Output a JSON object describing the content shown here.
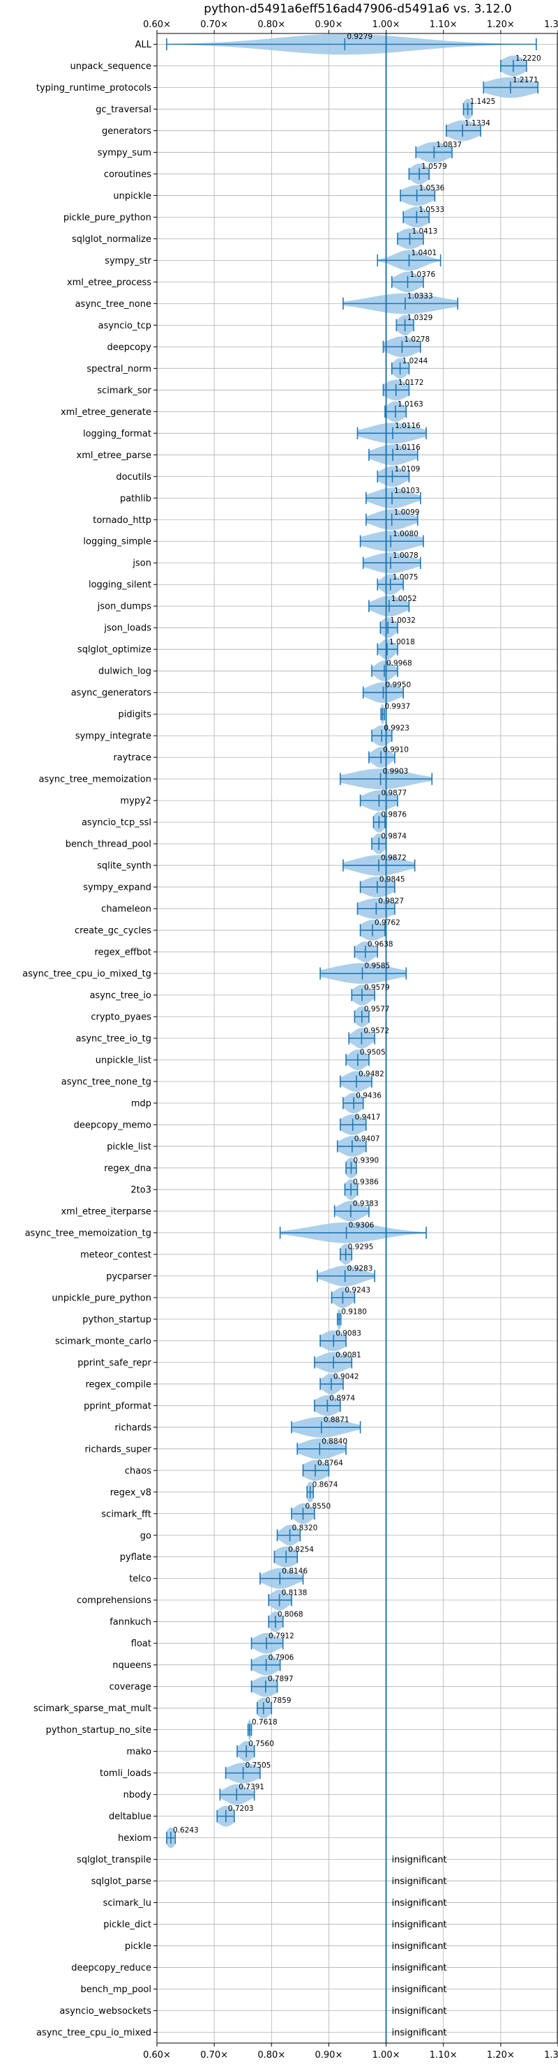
{
  "chart_data": {
    "type": "violin",
    "title": "python-d5491a6eff516ad47906-d5491a6 vs. 3.12.0",
    "xlim": [
      0.6,
      1.3
    ],
    "x_ticks": [
      "0.60×",
      "0.70×",
      "0.80×",
      "0.90×",
      "1.00×",
      "1.10×",
      "1.20×",
      "1.30×"
    ],
    "grid": true,
    "reference_line": 1.0,
    "colors": {
      "violin": "#9ec8e8",
      "marker": "#1f77b4",
      "grid": "#b0b0b0",
      "text": "#000000"
    },
    "benchmarks": [
      {
        "name": "ALL",
        "label": "0.9279",
        "value": 0.9279,
        "min": 0.617,
        "max": 1.262,
        "spread": 0.12
      },
      {
        "name": "unpack_sequence",
        "label": "1.2220",
        "value": 1.222,
        "min": 1.2,
        "max": 1.245,
        "spread": 0.02
      },
      {
        "name": "typing_runtime_protocols",
        "label": "1.2171",
        "value": 1.2171,
        "min": 1.17,
        "max": 1.265,
        "spread": 0.04
      },
      {
        "name": "gc_traversal",
        "label": "1.1425",
        "value": 1.1425,
        "min": 1.135,
        "max": 1.15,
        "spread": 0.008
      },
      {
        "name": "generators",
        "label": "1.1334",
        "value": 1.1334,
        "min": 1.105,
        "max": 1.165,
        "spread": 0.025
      },
      {
        "name": "sympy_sum",
        "label": "1.0837",
        "value": 1.0837,
        "min": 1.052,
        "max": 1.115,
        "spread": 0.025
      },
      {
        "name": "coroutines",
        "label": "1.0579",
        "value": 1.0579,
        "min": 1.04,
        "max": 1.075,
        "spread": 0.015
      },
      {
        "name": "unpickle",
        "label": "1.0536",
        "value": 1.0536,
        "min": 1.025,
        "max": 1.085,
        "spread": 0.025
      },
      {
        "name": "pickle_pure_python",
        "label": "1.0533",
        "value": 1.0533,
        "min": 1.03,
        "max": 1.075,
        "spread": 0.02
      },
      {
        "name": "sqlglot_normalize",
        "label": "1.0413",
        "value": 1.0413,
        "min": 1.02,
        "max": 1.065,
        "spread": 0.02
      },
      {
        "name": "sympy_str",
        "label": "1.0401",
        "value": 1.0401,
        "min": 0.985,
        "max": 1.095,
        "spread": 0.025
      },
      {
        "name": "xml_etree_process",
        "label": "1.0376",
        "value": 1.0376,
        "min": 1.01,
        "max": 1.065,
        "spread": 0.02
      },
      {
        "name": "async_tree_none",
        "label": "1.0333",
        "value": 1.0333,
        "min": 0.925,
        "max": 1.125,
        "spread": 0.06
      },
      {
        "name": "asyncio_tcp",
        "label": "1.0329",
        "value": 1.0329,
        "min": 1.018,
        "max": 1.048,
        "spread": 0.012
      },
      {
        "name": "deepcopy",
        "label": "1.0278",
        "value": 1.0278,
        "min": 0.995,
        "max": 1.06,
        "spread": 0.025
      },
      {
        "name": "spectral_norm",
        "label": "1.0244",
        "value": 1.0244,
        "min": 1.01,
        "max": 1.04,
        "spread": 0.012
      },
      {
        "name": "scimark_sor",
        "label": "1.0172",
        "value": 1.0172,
        "min": 0.995,
        "max": 1.04,
        "spread": 0.02
      },
      {
        "name": "xml_etree_generate",
        "label": "1.0163",
        "value": 1.0163,
        "min": 0.998,
        "max": 1.035,
        "spread": 0.015
      },
      {
        "name": "logging_format",
        "label": "1.0116",
        "value": 1.0116,
        "min": 0.95,
        "max": 1.07,
        "spread": 0.04
      },
      {
        "name": "xml_etree_parse",
        "label": "1.0116",
        "value": 1.0116,
        "min": 0.97,
        "max": 1.055,
        "spread": 0.03
      },
      {
        "name": "docutils",
        "label": "1.0109",
        "value": 1.0109,
        "min": 0.985,
        "max": 1.04,
        "spread": 0.02
      },
      {
        "name": "pathlib",
        "label": "1.0103",
        "value": 1.0103,
        "min": 0.965,
        "max": 1.06,
        "spread": 0.03
      },
      {
        "name": "tornado_http",
        "label": "1.0099",
        "value": 1.0099,
        "min": 0.965,
        "max": 1.055,
        "spread": 0.03
      },
      {
        "name": "logging_simple",
        "label": "1.0080",
        "value": 1.008,
        "min": 0.955,
        "max": 1.065,
        "spread": 0.04
      },
      {
        "name": "json",
        "label": "1.0078",
        "value": 1.0078,
        "min": 0.96,
        "max": 1.06,
        "spread": 0.035
      },
      {
        "name": "logging_silent",
        "label": "1.0075",
        "value": 1.0075,
        "min": 0.985,
        "max": 1.03,
        "spread": 0.015
      },
      {
        "name": "json_dumps",
        "label": "1.0052",
        "value": 1.0052,
        "min": 0.97,
        "max": 1.04,
        "spread": 0.025
      },
      {
        "name": "json_loads",
        "label": "1.0032",
        "value": 1.0032,
        "min": 0.99,
        "max": 1.02,
        "spread": 0.012
      },
      {
        "name": "sqlglot_optimize",
        "label": "1.0018",
        "value": 1.0018,
        "min": 0.985,
        "max": 1.02,
        "spread": 0.012
      },
      {
        "name": "dulwich_log",
        "label": "0.9968",
        "value": 0.9968,
        "min": 0.975,
        "max": 1.02,
        "spread": 0.015
      },
      {
        "name": "async_generators",
        "label": "0.9950",
        "value": 0.995,
        "min": 0.96,
        "max": 1.03,
        "spread": 0.025
      },
      {
        "name": "pidigits",
        "label": "0.9937",
        "value": 0.9937,
        "min": 0.991,
        "max": 0.997,
        "spread": 0.003
      },
      {
        "name": "sympy_integrate",
        "label": "0.9923",
        "value": 0.9923,
        "min": 0.975,
        "max": 1.01,
        "spread": 0.015
      },
      {
        "name": "raytrace",
        "label": "0.9910",
        "value": 0.991,
        "min": 0.97,
        "max": 1.015,
        "spread": 0.015
      },
      {
        "name": "async_tree_memoization",
        "label": "0.9903",
        "value": 0.9903,
        "min": 0.92,
        "max": 1.08,
        "spread": 0.05
      },
      {
        "name": "mypy2",
        "label": "0.9877",
        "value": 0.9877,
        "min": 0.955,
        "max": 1.02,
        "spread": 0.025
      },
      {
        "name": "asyncio_tcp_ssl",
        "label": "0.9876",
        "value": 0.9876,
        "min": 0.978,
        "max": 0.998,
        "spread": 0.01
      },
      {
        "name": "bench_thread_pool",
        "label": "0.9874",
        "value": 0.9874,
        "min": 0.975,
        "max": 1.0,
        "spread": 0.01
      },
      {
        "name": "sqlite_synth",
        "label": "0.9872",
        "value": 0.9872,
        "min": 0.925,
        "max": 1.05,
        "spread": 0.04
      },
      {
        "name": "sympy_expand",
        "label": "0.9845",
        "value": 0.9845,
        "min": 0.955,
        "max": 1.015,
        "spread": 0.025
      },
      {
        "name": "chameleon",
        "label": "0.9827",
        "value": 0.9827,
        "min": 0.95,
        "max": 1.015,
        "spread": 0.03
      },
      {
        "name": "create_gc_cycles",
        "label": "0.9762",
        "value": 0.9762,
        "min": 0.955,
        "max": 0.998,
        "spread": 0.02
      },
      {
        "name": "regex_effbot",
        "label": "0.9638",
        "value": 0.9638,
        "min": 0.945,
        "max": 0.985,
        "spread": 0.015
      },
      {
        "name": "async_tree_cpu_io_mixed_tg",
        "label": "0.9585",
        "value": 0.9585,
        "min": 0.885,
        "max": 1.035,
        "spread": 0.05
      },
      {
        "name": "async_tree_io",
        "label": "0.9579",
        "value": 0.9579,
        "min": 0.94,
        "max": 0.98,
        "spread": 0.015
      },
      {
        "name": "crypto_pyaes",
        "label": "0.9577",
        "value": 0.9577,
        "min": 0.945,
        "max": 0.97,
        "spread": 0.012
      },
      {
        "name": "async_tree_io_tg",
        "label": "0.9572",
        "value": 0.9572,
        "min": 0.935,
        "max": 0.98,
        "spread": 0.015
      },
      {
        "name": "unpickle_list",
        "label": "0.9505",
        "value": 0.9505,
        "min": 0.93,
        "max": 0.97,
        "spread": 0.015
      },
      {
        "name": "async_tree_none_tg",
        "label": "0.9482",
        "value": 0.9482,
        "min": 0.92,
        "max": 0.975,
        "spread": 0.02
      },
      {
        "name": "mdp",
        "label": "0.9436",
        "value": 0.9436,
        "min": 0.925,
        "max": 0.96,
        "spread": 0.015
      },
      {
        "name": "deepcopy_memo",
        "label": "0.9417",
        "value": 0.9417,
        "min": 0.92,
        "max": 0.965,
        "spread": 0.02
      },
      {
        "name": "pickle_list",
        "label": "0.9407",
        "value": 0.9407,
        "min": 0.915,
        "max": 0.965,
        "spread": 0.02
      },
      {
        "name": "regex_dna",
        "label": "0.9390",
        "value": 0.939,
        "min": 0.93,
        "max": 0.948,
        "spread": 0.01
      },
      {
        "name": "2to3",
        "label": "0.9386",
        "value": 0.9386,
        "min": 0.928,
        "max": 0.95,
        "spread": 0.01
      },
      {
        "name": "xml_etree_iterparse",
        "label": "0.9383",
        "value": 0.9383,
        "min": 0.91,
        "max": 0.97,
        "spread": 0.02
      },
      {
        "name": "async_tree_memoization_tg",
        "label": "0.9306",
        "value": 0.9306,
        "min": 0.815,
        "max": 1.07,
        "spread": 0.06
      },
      {
        "name": "meteor_contest",
        "label": "0.9295",
        "value": 0.9295,
        "min": 0.92,
        "max": 0.94,
        "spread": 0.01
      },
      {
        "name": "pycparser",
        "label": "0.9283",
        "value": 0.9283,
        "min": 0.88,
        "max": 0.98,
        "spread": 0.03
      },
      {
        "name": "unpickle_pure_python",
        "label": "0.9243",
        "value": 0.9243,
        "min": 0.905,
        "max": 0.945,
        "spread": 0.015
      },
      {
        "name": "python_startup",
        "label": "0.9180",
        "value": 0.918,
        "min": 0.915,
        "max": 0.921,
        "spread": 0.004
      },
      {
        "name": "scimark_monte_carlo",
        "label": "0.9083",
        "value": 0.9083,
        "min": 0.885,
        "max": 0.93,
        "spread": 0.02
      },
      {
        "name": "pprint_safe_repr",
        "label": "0.9081",
        "value": 0.9081,
        "min": 0.875,
        "max": 0.94,
        "spread": 0.025
      },
      {
        "name": "regex_compile",
        "label": "0.9042",
        "value": 0.9042,
        "min": 0.885,
        "max": 0.925,
        "spread": 0.015
      },
      {
        "name": "pprint_pformat",
        "label": "0.8974",
        "value": 0.8974,
        "min": 0.875,
        "max": 0.92,
        "spread": 0.02
      },
      {
        "name": "richards",
        "label": "0.8871",
        "value": 0.8871,
        "min": 0.835,
        "max": 0.955,
        "spread": 0.04
      },
      {
        "name": "richards_super",
        "label": "0.8840",
        "value": 0.884,
        "min": 0.845,
        "max": 0.93,
        "spread": 0.03
      },
      {
        "name": "chaos",
        "label": "0.8764",
        "value": 0.8764,
        "min": 0.855,
        "max": 0.9,
        "spread": 0.02
      },
      {
        "name": "regex_v8",
        "label": "0.8674",
        "value": 0.8674,
        "min": 0.862,
        "max": 0.873,
        "spread": 0.006
      },
      {
        "name": "scimark_fft",
        "label": "0.8550",
        "value": 0.855,
        "min": 0.835,
        "max": 0.875,
        "spread": 0.015
      },
      {
        "name": "go",
        "label": "0.8320",
        "value": 0.832,
        "min": 0.81,
        "max": 0.85,
        "spread": 0.015
      },
      {
        "name": "pyflate",
        "label": "0.8254",
        "value": 0.8254,
        "min": 0.805,
        "max": 0.845,
        "spread": 0.02
      },
      {
        "name": "telco",
        "label": "0.8146",
        "value": 0.8146,
        "min": 0.78,
        "max": 0.855,
        "spread": 0.025
      },
      {
        "name": "comprehensions",
        "label": "0.8138",
        "value": 0.8138,
        "min": 0.795,
        "max": 0.835,
        "spread": 0.015
      },
      {
        "name": "fannkuch",
        "label": "0.8068",
        "value": 0.8068,
        "min": 0.795,
        "max": 0.82,
        "spread": 0.01
      },
      {
        "name": "float",
        "label": "0.7912",
        "value": 0.7912,
        "min": 0.765,
        "max": 0.82,
        "spread": 0.02
      },
      {
        "name": "nqueens",
        "label": "0.7906",
        "value": 0.7906,
        "min": 0.765,
        "max": 0.815,
        "spread": 0.02
      },
      {
        "name": "coverage",
        "label": "0.7897",
        "value": 0.7897,
        "min": 0.765,
        "max": 0.81,
        "spread": 0.02
      },
      {
        "name": "scimark_sparse_mat_mult",
        "label": "0.7859",
        "value": 0.7859,
        "min": 0.775,
        "max": 0.8,
        "spread": 0.012
      },
      {
        "name": "python_startup_no_site",
        "label": "0.7618",
        "value": 0.7618,
        "min": 0.759,
        "max": 0.765,
        "spread": 0.003
      },
      {
        "name": "mako",
        "label": "0.7560",
        "value": 0.756,
        "min": 0.74,
        "max": 0.77,
        "spread": 0.012
      },
      {
        "name": "tomli_loads",
        "label": "0.7505",
        "value": 0.7505,
        "min": 0.72,
        "max": 0.78,
        "spread": 0.025
      },
      {
        "name": "nbody",
        "label": "0.7391",
        "value": 0.7391,
        "min": 0.71,
        "max": 0.77,
        "spread": 0.02
      },
      {
        "name": "deltablue",
        "label": "0.7203",
        "value": 0.7203,
        "min": 0.705,
        "max": 0.735,
        "spread": 0.015
      },
      {
        "name": "hexiom",
        "label": "0.6243",
        "value": 0.6243,
        "min": 0.617,
        "max": 0.632,
        "spread": 0.008
      },
      {
        "name": "sqlglot_transpile",
        "label": "insignificant"
      },
      {
        "name": "sqlglot_parse",
        "label": "insignificant"
      },
      {
        "name": "scimark_lu",
        "label": "insignificant"
      },
      {
        "name": "pickle_dict",
        "label": "insignificant"
      },
      {
        "name": "pickle",
        "label": "insignificant"
      },
      {
        "name": "deepcopy_reduce",
        "label": "insignificant"
      },
      {
        "name": "bench_mp_pool",
        "label": "insignificant"
      },
      {
        "name": "asyncio_websockets",
        "label": "insignificant"
      },
      {
        "name": "async_tree_cpu_io_mixed",
        "label": "insignificant"
      }
    ]
  }
}
